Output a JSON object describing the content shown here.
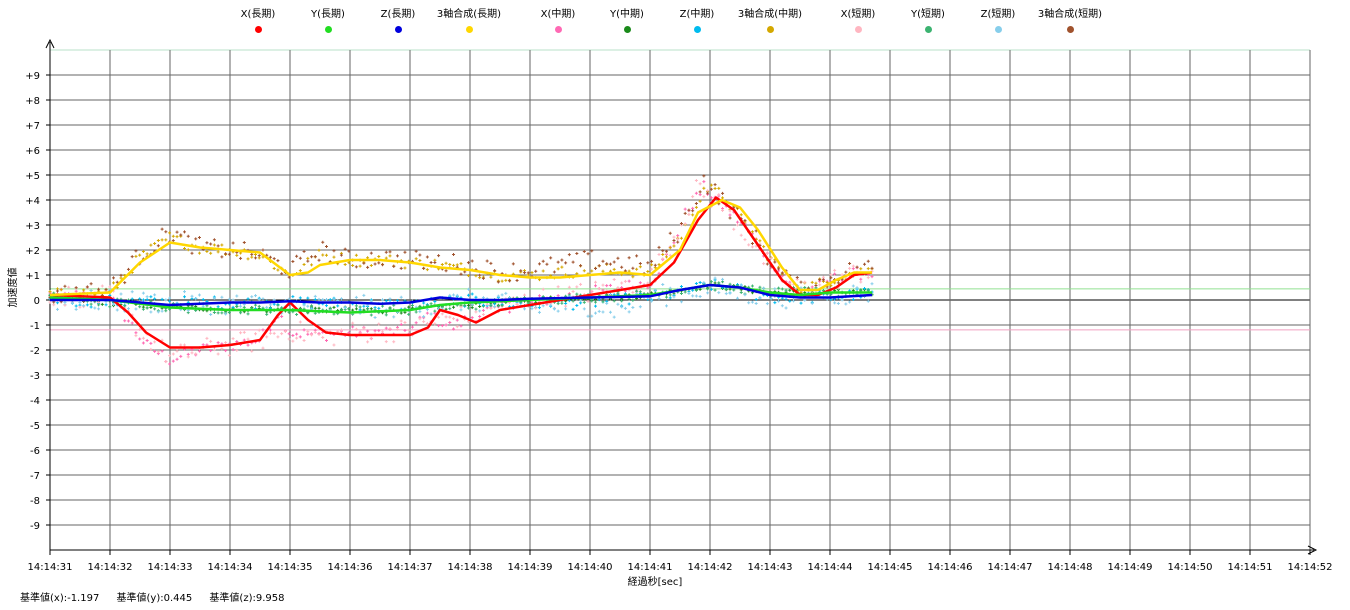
{
  "chart_data": {
    "type": "scatter",
    "title": "",
    "xlabel": "経過秒[sec]",
    "ylabel": "加速度値",
    "x_ticks": [
      "14:14:31",
      "14:14:32",
      "14:14:33",
      "14:14:34",
      "14:14:35",
      "14:14:36",
      "14:14:37",
      "14:14:38",
      "14:14:39",
      "14:14:40",
      "14:14:41",
      "14:14:42",
      "14:14:43",
      "14:14:44",
      "14:14:45",
      "14:14:46",
      "14:14:47",
      "14:14:48",
      "14:14:49",
      "14:14:50",
      "14:14:51",
      "14:14:52"
    ],
    "y_ticks": [
      "+9",
      "+8",
      "+7",
      "+6",
      "+5",
      "+4",
      "+3",
      "+2",
      "+1",
      "0",
      "-1",
      "-2",
      "-3",
      "-4",
      "-5",
      "-6",
      "-7",
      "-8",
      "-9"
    ],
    "xlim": [
      0,
      21
    ],
    "ylim": [
      -10,
      10
    ],
    "x_unit_note": "seconds after 14:14:31",
    "grid": true,
    "legend_position": "top",
    "reference_lines": [
      {
        "value": 0.445,
        "color": "#90e090"
      },
      {
        "value": -1.197,
        "color": "#f0a0c0"
      }
    ],
    "series": [
      {
        "name": "X(長期)",
        "color": "#ff0000",
        "style": "line",
        "points": [
          [
            0,
            0.2
          ],
          [
            1,
            0.1
          ],
          [
            1.3,
            -0.5
          ],
          [
            1.6,
            -1.3
          ],
          [
            2,
            -1.9
          ],
          [
            2.5,
            -1.9
          ],
          [
            3,
            -1.8
          ],
          [
            3.5,
            -1.6
          ],
          [
            3.8,
            -0.6
          ],
          [
            4,
            -0.1
          ],
          [
            4.3,
            -0.8
          ],
          [
            4.6,
            -1.3
          ],
          [
            5,
            -1.4
          ],
          [
            5.5,
            -1.4
          ],
          [
            6,
            -1.4
          ],
          [
            6.3,
            -1.1
          ],
          [
            6.5,
            -0.4
          ],
          [
            6.8,
            -0.6
          ],
          [
            7.1,
            -0.9
          ],
          [
            7.5,
            -0.4
          ],
          [
            8,
            -0.2
          ],
          [
            9,
            0.2
          ],
          [
            10,
            0.6
          ],
          [
            10.4,
            1.5
          ],
          [
            10.8,
            3.2
          ],
          [
            11.1,
            4.1
          ],
          [
            11.4,
            3.6
          ],
          [
            11.8,
            2.2
          ],
          [
            12.2,
            0.8
          ],
          [
            12.5,
            0.2
          ],
          [
            12.8,
            0.2
          ],
          [
            13.1,
            0.5
          ],
          [
            13.4,
            1.0
          ],
          [
            13.7,
            1.1
          ]
        ]
      },
      {
        "name": "Y(長期)",
        "color": "#22dd22",
        "style": "line",
        "points": [
          [
            0,
            0.1
          ],
          [
            1,
            0.0
          ],
          [
            2,
            -0.3
          ],
          [
            3,
            -0.4
          ],
          [
            4,
            -0.4
          ],
          [
            5,
            -0.5
          ],
          [
            6,
            -0.4
          ],
          [
            6.5,
            -0.2
          ],
          [
            7,
            -0.1
          ],
          [
            8,
            0.0
          ],
          [
            9,
            0.1
          ],
          [
            10,
            0.2
          ],
          [
            10.5,
            0.4
          ],
          [
            11,
            0.6
          ],
          [
            11.5,
            0.5
          ],
          [
            12,
            0.3
          ],
          [
            12.5,
            0.2
          ],
          [
            13,
            0.3
          ],
          [
            13.7,
            0.3
          ]
        ]
      },
      {
        "name": "Z(長期)",
        "color": "#0000dd",
        "style": "line",
        "points": [
          [
            0,
            0.0
          ],
          [
            1,
            0.0
          ],
          [
            1.5,
            -0.1
          ],
          [
            2,
            -0.2
          ],
          [
            2.5,
            -0.15
          ],
          [
            3,
            -0.1
          ],
          [
            3.5,
            -0.1
          ],
          [
            4,
            -0.05
          ],
          [
            4.5,
            -0.1
          ],
          [
            5,
            -0.1
          ],
          [
            5.5,
            -0.15
          ],
          [
            6,
            -0.1
          ],
          [
            6.5,
            0.1
          ],
          [
            7,
            0.0
          ],
          [
            7.5,
            0.0
          ],
          [
            8,
            0.05
          ],
          [
            9,
            0.1
          ],
          [
            10,
            0.15
          ],
          [
            10.5,
            0.4
          ],
          [
            11,
            0.6
          ],
          [
            11.5,
            0.5
          ],
          [
            12,
            0.2
          ],
          [
            12.5,
            0.1
          ],
          [
            13,
            0.1
          ],
          [
            13.7,
            0.2
          ]
        ]
      },
      {
        "name": "3軸合成(長期)",
        "color": "#ffd700",
        "style": "line",
        "points": [
          [
            0,
            0.2
          ],
          [
            1,
            0.3
          ],
          [
            1.5,
            1.5
          ],
          [
            2,
            2.3
          ],
          [
            2.5,
            2.1
          ],
          [
            3,
            2.0
          ],
          [
            3.5,
            1.9
          ],
          [
            4,
            1.0
          ],
          [
            4.3,
            1.1
          ],
          [
            4.5,
            1.4
          ],
          [
            5,
            1.6
          ],
          [
            5.5,
            1.6
          ],
          [
            6,
            1.5
          ],
          [
            6.5,
            1.3
          ],
          [
            7,
            1.2
          ],
          [
            7.5,
            1.0
          ],
          [
            8,
            0.9
          ],
          [
            8.5,
            0.9
          ],
          [
            9,
            1.0
          ],
          [
            9.5,
            1.1
          ],
          [
            10,
            1.0
          ],
          [
            10.5,
            2.0
          ],
          [
            10.8,
            3.5
          ],
          [
            11.2,
            4.0
          ],
          [
            11.5,
            3.7
          ],
          [
            11.8,
            2.8
          ],
          [
            12.2,
            1.3
          ],
          [
            12.5,
            0.4
          ],
          [
            12.8,
            0.4
          ],
          [
            13.1,
            0.8
          ],
          [
            13.4,
            1.1
          ],
          [
            13.7,
            1.1
          ]
        ]
      },
      {
        "name": "X(中期)",
        "color": "#ff69b4",
        "style": "scatter",
        "noise": 0.25,
        "points": [
          [
            0,
            0.2
          ],
          [
            1,
            0.1
          ],
          [
            1.3,
            -0.8
          ],
          [
            1.6,
            -1.8
          ],
          [
            2,
            -2.4
          ],
          [
            2.5,
            -2.0
          ],
          [
            3,
            -1.8
          ],
          [
            3.5,
            -1.6
          ],
          [
            3.8,
            -0.5
          ],
          [
            4,
            -1.3
          ],
          [
            4.5,
            -1.4
          ],
          [
            5,
            -1.3
          ],
          [
            5.5,
            -1.3
          ],
          [
            6,
            -1.2
          ],
          [
            6.3,
            -0.6
          ],
          [
            6.7,
            -1.1
          ],
          [
            7,
            -0.7
          ],
          [
            7.5,
            -0.3
          ],
          [
            8,
            -0.1
          ],
          [
            9,
            0.3
          ],
          [
            10,
            0.7
          ],
          [
            10.3,
            1.8
          ],
          [
            10.6,
            3.5
          ],
          [
            10.9,
            4.5
          ],
          [
            11.2,
            3.8
          ],
          [
            11.6,
            2.9
          ],
          [
            12,
            1.6
          ],
          [
            12.4,
            0.4
          ],
          [
            12.8,
            0.5
          ],
          [
            13.2,
            1.0
          ],
          [
            13.7,
            1.1
          ]
        ]
      },
      {
        "name": "Y(中期)",
        "color": "#1a8a1a",
        "style": "scatter",
        "noise": 0.12,
        "points": [
          [
            0,
            0.1
          ],
          [
            2,
            -0.3
          ],
          [
            4,
            -0.4
          ],
          [
            6,
            -0.4
          ],
          [
            8,
            0.0
          ],
          [
            10,
            0.2
          ],
          [
            11,
            0.6
          ],
          [
            12,
            0.3
          ],
          [
            13.7,
            0.3
          ]
        ]
      },
      {
        "name": "Z(中期)",
        "color": "#00bbee",
        "style": "scatter",
        "noise": 0.25,
        "points": [
          [
            0,
            0.0
          ],
          [
            2,
            -0.1
          ],
          [
            4,
            -0.1
          ],
          [
            6,
            -0.2
          ],
          [
            7,
            0.0
          ],
          [
            8,
            -0.2
          ],
          [
            9,
            -0.1
          ],
          [
            10,
            0.1
          ],
          [
            10.5,
            0.3
          ],
          [
            11,
            0.6
          ],
          [
            11.5,
            0.4
          ],
          [
            12,
            0.1
          ],
          [
            13,
            0.1
          ],
          [
            13.7,
            0.3
          ]
        ]
      },
      {
        "name": "3軸合成(中期)",
        "color": "#d4a800",
        "style": "scatter",
        "noise": 0.25,
        "points": [
          [
            0,
            0.2
          ],
          [
            1,
            0.3
          ],
          [
            1.5,
            1.7
          ],
          [
            2,
            2.5
          ],
          [
            2.5,
            2.1
          ],
          [
            3,
            2.0
          ],
          [
            3.5,
            1.8
          ],
          [
            4,
            1.0
          ],
          [
            4.5,
            1.8
          ],
          [
            5,
            1.6
          ],
          [
            5.5,
            1.6
          ],
          [
            6,
            1.5
          ],
          [
            6.5,
            1.4
          ],
          [
            7,
            1.2
          ],
          [
            7.5,
            1.0
          ],
          [
            8,
            1.0
          ],
          [
            8.5,
            1.1
          ],
          [
            9,
            1.2
          ],
          [
            9.5,
            1.2
          ],
          [
            10,
            1.1
          ],
          [
            10.5,
            2.5
          ],
          [
            10.9,
            4.5
          ],
          [
            11.2,
            4.2
          ],
          [
            11.6,
            3.0
          ],
          [
            12,
            1.7
          ],
          [
            12.4,
            0.5
          ],
          [
            12.8,
            0.6
          ],
          [
            13.2,
            1.0
          ],
          [
            13.7,
            1.2
          ]
        ]
      },
      {
        "name": "X(短期)",
        "color": "#ffb6c1",
        "style": "scatter",
        "noise": 0.45,
        "points": [
          [
            0,
            0.2
          ],
          [
            1,
            0.1
          ],
          [
            1.5,
            -1.2
          ],
          [
            2,
            -2.3
          ],
          [
            2.5,
            -2.0
          ],
          [
            3,
            -1.8
          ],
          [
            3.5,
            -1.6
          ],
          [
            4,
            -1.2
          ],
          [
            4.5,
            -1.5
          ],
          [
            5,
            -1.3
          ],
          [
            6,
            -1.2
          ],
          [
            6.5,
            -0.8
          ],
          [
            7,
            -0.6
          ],
          [
            8,
            0.0
          ],
          [
            9,
            0.3
          ],
          [
            10,
            0.8
          ],
          [
            10.4,
            2.5
          ],
          [
            10.8,
            4.5
          ],
          [
            11.2,
            3.8
          ],
          [
            11.6,
            2.6
          ],
          [
            12,
            1.3
          ],
          [
            12.5,
            0.4
          ],
          [
            13,
            0.8
          ],
          [
            13.7,
            1.2
          ]
        ]
      },
      {
        "name": "Y(短期)",
        "color": "#3cb371",
        "style": "scatter",
        "noise": 0.2,
        "points": [
          [
            0,
            0.1
          ],
          [
            2,
            -0.3
          ],
          [
            4,
            -0.4
          ],
          [
            6,
            -0.4
          ],
          [
            8,
            0.0
          ],
          [
            10,
            0.2
          ],
          [
            11,
            0.6
          ],
          [
            12,
            0.3
          ],
          [
            13.7,
            0.3
          ]
        ]
      },
      {
        "name": "Z(短期)",
        "color": "#87ceeb",
        "style": "scatter",
        "noise": 0.45,
        "points": [
          [
            0,
            0.0
          ],
          [
            2,
            -0.1
          ],
          [
            4,
            -0.2
          ],
          [
            6,
            -0.3
          ],
          [
            7,
            0.0
          ],
          [
            8,
            -0.3
          ],
          [
            9,
            -0.2
          ],
          [
            9.5,
            -0.4
          ],
          [
            10,
            0.1
          ],
          [
            11,
            0.5
          ],
          [
            12,
            0.1
          ],
          [
            13,
            0.2
          ],
          [
            13.7,
            0.3
          ]
        ]
      },
      {
        "name": "3軸合成(短期)",
        "color": "#a0522d",
        "style": "scatter",
        "noise": 0.4,
        "points": [
          [
            0,
            0.2
          ],
          [
            1,
            0.4
          ],
          [
            1.5,
            1.8
          ],
          [
            2,
            2.7
          ],
          [
            2.5,
            2.1
          ],
          [
            3,
            2.0
          ],
          [
            3.5,
            1.8
          ],
          [
            4,
            1.2
          ],
          [
            4.5,
            2.0
          ],
          [
            5,
            1.6
          ],
          [
            5.5,
            1.7
          ],
          [
            6,
            1.6
          ],
          [
            6.5,
            1.5
          ],
          [
            7,
            1.4
          ],
          [
            7.5,
            1.1
          ],
          [
            8,
            1.2
          ],
          [
            8.5,
            1.4
          ],
          [
            9,
            1.6
          ],
          [
            9.5,
            1.5
          ],
          [
            10,
            1.3
          ],
          [
            10.5,
            2.8
          ],
          [
            10.9,
            4.8
          ],
          [
            11.2,
            4.0
          ],
          [
            11.6,
            3.0
          ],
          [
            12,
            1.6
          ],
          [
            12.4,
            0.5
          ],
          [
            12.8,
            0.6
          ],
          [
            13.2,
            1.1
          ],
          [
            13.7,
            1.3
          ]
        ]
      }
    ]
  },
  "footer": {
    "base_x": "基準値(x):-1.197",
    "base_y": "基準値(y):0.445",
    "base_z": "基準値(z):9.958"
  }
}
